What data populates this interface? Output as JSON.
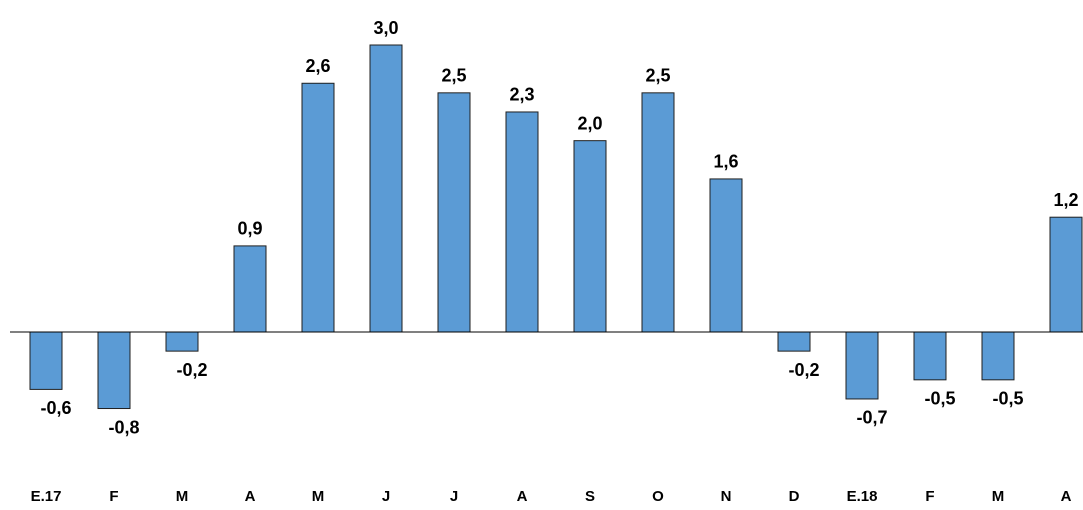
{
  "chart_data": {
    "type": "bar",
    "categories": [
      "E.17",
      "F",
      "M",
      "A",
      "M",
      "J",
      "J",
      "A",
      "S",
      "O",
      "N",
      "D",
      "E.18",
      "F",
      "M",
      "A"
    ],
    "values": [
      -0.6,
      -0.8,
      -0.2,
      0.9,
      2.6,
      3.0,
      2.5,
      2.3,
      2.0,
      2.5,
      1.6,
      -0.2,
      -0.7,
      -0.5,
      -0.5,
      1.2
    ],
    "value_labels": [
      "-0,6",
      "-0,8",
      "-0,2",
      "0,9",
      "2,6",
      "3,0",
      "2,5",
      "2,3",
      "2,0",
      "2,5",
      "1,6",
      "-0,2",
      "-0,7",
      "-0,5",
      "-0,5",
      "1,2"
    ],
    "color": "#5b9bd5"
  }
}
